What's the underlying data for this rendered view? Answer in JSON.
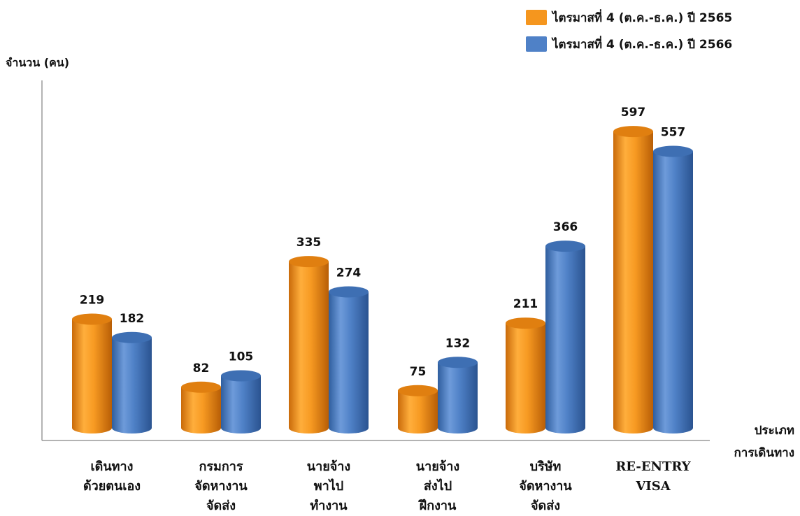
{
  "chart_data": {
    "type": "bar",
    "ylabel": "จำนวน (คน)",
    "xlabel_lines": [
      "ประเภท",
      "การเดินทาง"
    ],
    "ylim": [
      0,
      700
    ],
    "grid": false,
    "legend_position": "top-right",
    "categories": [
      [
        "เดินทาง",
        "ด้วยตนเอง"
      ],
      [
        "กรมการ",
        "จัดหางาน",
        "จัดส่ง"
      ],
      [
        "นายจ้าง",
        "พาไป",
        "ทำงาน"
      ],
      [
        "นายจ้าง",
        "ส่งไป",
        "ฝึกงาน"
      ],
      [
        "บริษัท",
        "จัดหางาน",
        "จัดส่ง"
      ],
      [
        "RE-ENTRY",
        "VISA"
      ]
    ],
    "series": [
      {
        "name": "ไตรมาสที่ 4 (ต.ค.-ธ.ค.) ปี 2565",
        "color": "#F5961E",
        "values": [
          219,
          82,
          335,
          75,
          211,
          597
        ]
      },
      {
        "name": "ไตรมาสที่ 4 (ต.ค.-ธ.ค.) ปี 2566",
        "color": "#4F81C7",
        "values": [
          182,
          105,
          274,
          132,
          366,
          557
        ]
      }
    ]
  }
}
